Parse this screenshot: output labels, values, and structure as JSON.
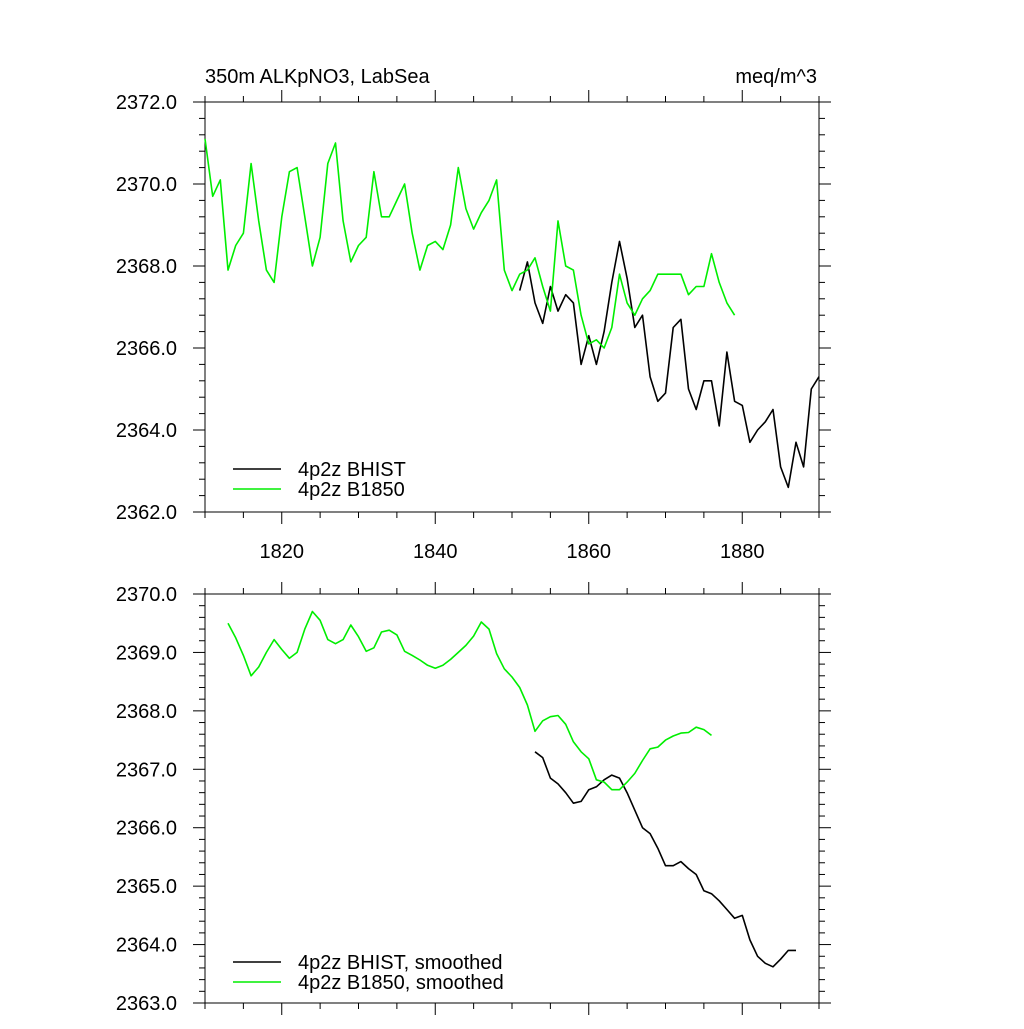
{
  "chart_data": [
    {
      "type": "line",
      "title": "350m ALKpNO3, LabSea",
      "units": "meq/m^3",
      "xlim": [
        1810,
        1890
      ],
      "ylim": [
        2362.0,
        2372.0
      ],
      "x_ticks": [
        1820,
        1840,
        1860,
        1880
      ],
      "x_tick_labels": [
        "1820",
        "1840",
        "1860",
        "1880"
      ],
      "y_ticks": [
        2362,
        2364,
        2366,
        2368,
        2370,
        2372
      ],
      "y_tick_labels": [
        "2362.0",
        "2364.0",
        "2366.0",
        "2368.0",
        "2370.0",
        "2372.0"
      ],
      "legend_position": "bottom-left",
      "series": [
        {
          "name": "4p2z BHIST",
          "color": "#000000",
          "x": [
            1851,
            1852,
            1853,
            1854,
            1855,
            1856,
            1857,
            1858,
            1859,
            1860,
            1861,
            1862,
            1863,
            1864,
            1865,
            1866,
            1867,
            1868,
            1869,
            1870,
            1871,
            1872,
            1873,
            1874,
            1875,
            1876,
            1877,
            1878,
            1879,
            1880,
            1881,
            1882,
            1883,
            1884,
            1885,
            1886,
            1887,
            1888,
            1889,
            1890
          ],
          "y": [
            2367.4,
            2368.1,
            2367.1,
            2366.6,
            2367.5,
            2366.9,
            2367.3,
            2367.1,
            2365.6,
            2366.3,
            2365.6,
            2366.4,
            2367.6,
            2368.6,
            2367.7,
            2366.5,
            2366.8,
            2365.3,
            2364.7,
            2364.9,
            2366.5,
            2366.7,
            2365.0,
            2364.5,
            2365.2,
            2365.2,
            2364.1,
            2365.9,
            2364.7,
            2364.6,
            2363.7,
            2364.0,
            2364.2,
            2364.5,
            2363.1,
            2362.6,
            2363.7,
            2363.1,
            2365.0,
            2365.3
          ]
        },
        {
          "name": "4p2z B1850",
          "color": "#00ee00",
          "x": [
            1810,
            1811,
            1812,
            1813,
            1814,
            1815,
            1816,
            1817,
            1818,
            1819,
            1820,
            1821,
            1822,
            1823,
            1824,
            1825,
            1826,
            1827,
            1828,
            1829,
            1830,
            1831,
            1832,
            1833,
            1834,
            1835,
            1836,
            1837,
            1838,
            1839,
            1840,
            1841,
            1842,
            1843,
            1844,
            1845,
            1846,
            1847,
            1848,
            1849,
            1850,
            1851,
            1852,
            1853,
            1854,
            1855,
            1856,
            1857,
            1858,
            1859,
            1860,
            1861,
            1862,
            1863,
            1864,
            1865,
            1866,
            1867,
            1868,
            1869,
            1870,
            1871,
            1872,
            1873,
            1874,
            1875,
            1876,
            1877,
            1878,
            1879
          ],
          "y": [
            2371.1,
            2369.7,
            2370.1,
            2367.9,
            2368.5,
            2368.8,
            2370.5,
            2369.1,
            2367.9,
            2367.6,
            2369.2,
            2370.3,
            2370.4,
            2369.2,
            2368.0,
            2368.7,
            2370.5,
            2371.0,
            2369.1,
            2368.1,
            2368.5,
            2368.7,
            2370.3,
            2369.2,
            2369.2,
            2369.6,
            2370.0,
            2368.8,
            2367.9,
            2368.5,
            2368.6,
            2368.4,
            2369.0,
            2370.4,
            2369.4,
            2368.9,
            2369.3,
            2369.6,
            2370.1,
            2367.9,
            2367.4,
            2367.8,
            2367.9,
            2368.2,
            2367.5,
            2366.9,
            2369.1,
            2368.0,
            2367.9,
            2366.8,
            2366.1,
            2366.2,
            2366.0,
            2366.5,
            2367.8,
            2367.1,
            2366.8,
            2367.2,
            2367.4,
            2367.8,
            2367.8,
            2367.8,
            2367.8,
            2367.3,
            2367.5,
            2367.5,
            2368.3,
            2367.6,
            2367.1,
            2366.8
          ]
        }
      ]
    },
    {
      "type": "line",
      "xlim": [
        1810,
        1890
      ],
      "ylim": [
        2363.0,
        2370.0
      ],
      "x_ticks": [
        1820,
        1840,
        1860,
        1880
      ],
      "y_ticks": [
        2363,
        2364,
        2365,
        2366,
        2367,
        2368,
        2369,
        2370
      ],
      "y_tick_labels": [
        "2363.0",
        "2364.0",
        "2365.0",
        "2366.0",
        "2367.0",
        "2368.0",
        "2369.0",
        "2370.0"
      ],
      "legend_position": "bottom-left",
      "series": [
        {
          "name": "4p2z BHIST, smoothed",
          "color": "#000000",
          "x": [
            1853,
            1854,
            1855,
            1856,
            1857,
            1858,
            1859,
            1860,
            1861,
            1862,
            1863,
            1864,
            1865,
            1866,
            1867,
            1868,
            1869,
            1870,
            1871,
            1872,
            1873,
            1874,
            1875,
            1876,
            1877,
            1878,
            1879,
            1880,
            1881,
            1882,
            1883,
            1884,
            1885,
            1886,
            1887
          ],
          "y": [
            2367.3,
            2367.2,
            2366.85,
            2366.75,
            2366.6,
            2366.42,
            2366.45,
            2366.65,
            2366.7,
            2366.82,
            2366.9,
            2366.85,
            2366.6,
            2366.3,
            2366.0,
            2365.9,
            2365.65,
            2365.35,
            2365.35,
            2365.42,
            2365.3,
            2365.2,
            2364.92,
            2364.87,
            2364.75,
            2364.6,
            2364.45,
            2364.5,
            2364.08,
            2363.8,
            2363.68,
            2363.62,
            2363.75,
            2363.9,
            2363.9
          ]
        },
        {
          "name": "4p2z B1850, smoothed",
          "color": "#00ee00",
          "x": [
            1813,
            1814,
            1815,
            1816,
            1817,
            1818,
            1819,
            1820,
            1821,
            1822,
            1823,
            1824,
            1825,
            1826,
            1827,
            1828,
            1829,
            1830,
            1831,
            1832,
            1833,
            1834,
            1835,
            1836,
            1837,
            1838,
            1839,
            1840,
            1841,
            1842,
            1843,
            1844,
            1845,
            1846,
            1847,
            1848,
            1849,
            1850,
            1851,
            1852,
            1853,
            1854,
            1855,
            1856,
            1857,
            1858,
            1859,
            1860,
            1861,
            1862,
            1863,
            1864,
            1865,
            1866,
            1867,
            1868,
            1869,
            1870,
            1871,
            1872,
            1873,
            1874,
            1875,
            1876
          ],
          "y": [
            2369.5,
            2369.25,
            2368.95,
            2368.6,
            2368.75,
            2369.0,
            2369.22,
            2369.05,
            2368.9,
            2369.0,
            2369.4,
            2369.7,
            2369.55,
            2369.22,
            2369.15,
            2369.22,
            2369.47,
            2369.27,
            2369.02,
            2369.08,
            2369.35,
            2369.38,
            2369.3,
            2369.02,
            2368.95,
            2368.87,
            2368.78,
            2368.73,
            2368.78,
            2368.88,
            2369.0,
            2369.12,
            2369.28,
            2369.52,
            2369.4,
            2368.98,
            2368.72,
            2368.58,
            2368.4,
            2368.1,
            2367.65,
            2367.83,
            2367.9,
            2367.92,
            2367.77,
            2367.47,
            2367.3,
            2367.18,
            2366.82,
            2366.78,
            2366.65,
            2366.65,
            2366.78,
            2366.93,
            2367.15,
            2367.35,
            2367.38,
            2367.5,
            2367.57,
            2367.62,
            2367.63,
            2367.72,
            2367.68,
            2367.58
          ]
        }
      ]
    }
  ]
}
